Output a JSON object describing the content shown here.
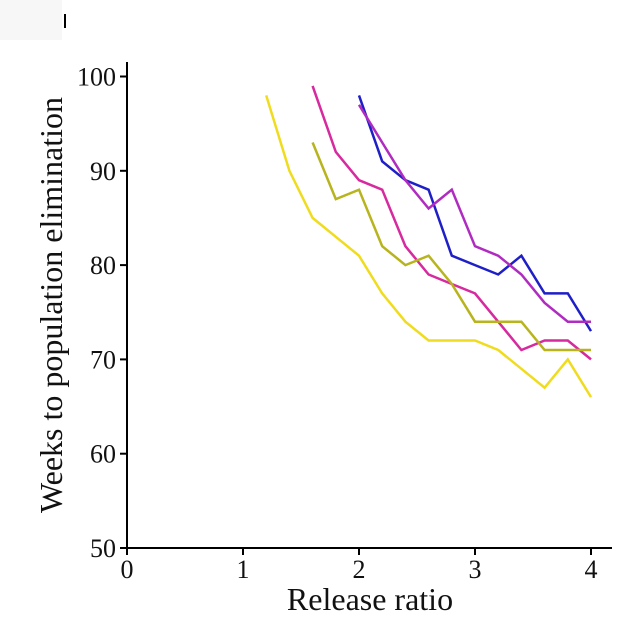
{
  "chart_data": {
    "type": "line",
    "title": "",
    "xlabel": "Release ratio",
    "ylabel": "Weeks to population elimination",
    "xlim": [
      0,
      4.2
    ],
    "ylim": [
      50,
      100
    ],
    "xticks": [
      0,
      1,
      2,
      3,
      4
    ],
    "yticks": [
      50,
      60,
      70,
      80,
      90,
      100
    ],
    "grid": false,
    "legend": "none",
    "series": [
      {
        "color": "#1f1fc8",
        "x": [
          2.0,
          2.2,
          2.4,
          2.6,
          2.8,
          3.0,
          3.2,
          3.4,
          3.6,
          3.8,
          4.0
        ],
        "y": [
          98,
          91,
          89,
          88,
          81,
          80,
          79,
          81,
          77,
          77,
          73
        ]
      },
      {
        "color": "#b02cc0",
        "x": [
          2.0,
          2.2,
          2.4,
          2.6,
          2.8,
          3.0,
          3.2,
          3.4,
          3.6,
          3.8,
          4.0
        ],
        "y": [
          97,
          93,
          89,
          86,
          88,
          82,
          81,
          79,
          76,
          74,
          74
        ]
      },
      {
        "color": "#d62a9e",
        "x": [
          1.6,
          1.8,
          2.0,
          2.2,
          2.4,
          2.6,
          2.8,
          3.0,
          3.2,
          3.4,
          3.6,
          3.8,
          4.0
        ],
        "y": [
          99,
          92,
          89,
          88,
          82,
          79,
          78,
          77,
          74,
          71,
          72,
          72,
          70
        ]
      },
      {
        "color": "#b8b41e",
        "x": [
          1.6,
          1.8,
          2.0,
          2.2,
          2.4,
          2.6,
          2.8,
          3.0,
          3.2,
          3.4,
          3.6,
          3.8,
          4.0
        ],
        "y": [
          93,
          87,
          88,
          82,
          80,
          81,
          78,
          74,
          74,
          74,
          71,
          71,
          71
        ]
      },
      {
        "color": "#f0dc1e",
        "x": [
          1.2,
          1.4,
          1.6,
          1.8,
          2.0,
          2.2,
          2.4,
          2.6,
          2.8,
          3.0,
          3.2,
          3.4,
          3.6,
          3.8,
          4.0
        ],
        "y": [
          98,
          90,
          85,
          83,
          81,
          77,
          74,
          72,
          72,
          72,
          71,
          69,
          67,
          70,
          66
        ]
      }
    ]
  }
}
